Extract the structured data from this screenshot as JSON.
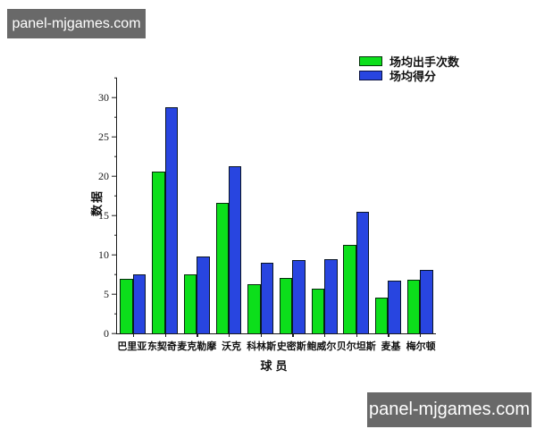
{
  "watermarks": {
    "top_left": "panel-mjgames.com",
    "bottom_right": "panel-mjgames.com"
  },
  "chart_data": {
    "type": "bar",
    "title": "",
    "xlabel": "球员",
    "ylabel": "数据",
    "categories": [
      "巴里亚",
      "东契奇",
      "麦克勒摩",
      "沃克",
      "科林斯",
      "史密斯",
      "鲍威尔",
      "贝尔坦斯",
      "麦基",
      "梅尔顿"
    ],
    "series": [
      {
        "name": "场均出手次数",
        "color": "#0cdf1b",
        "values": [
          6.9,
          20.6,
          7.5,
          16.6,
          6.3,
          7.1,
          5.7,
          11.3,
          4.5,
          6.8
        ]
      },
      {
        "name": "场均得分",
        "color": "#2845e0",
        "values": [
          7.5,
          28.8,
          9.8,
          21.2,
          9.0,
          9.3,
          9.4,
          15.4,
          6.7,
          8.1
        ]
      }
    ],
    "ylim": [
      0,
      32.5
    ],
    "yticks": [
      0,
      5,
      10,
      15,
      20,
      25,
      30
    ],
    "minor_tick_step": 2.5,
    "grid": false,
    "legend_position": "upper right"
  },
  "colors": {
    "watermark_bg": "#696969",
    "watermark_text": "#ffffff",
    "axis": "#1a1a1a",
    "bar_shots": "#0cdf1b",
    "bar_points": "#2845e0"
  }
}
